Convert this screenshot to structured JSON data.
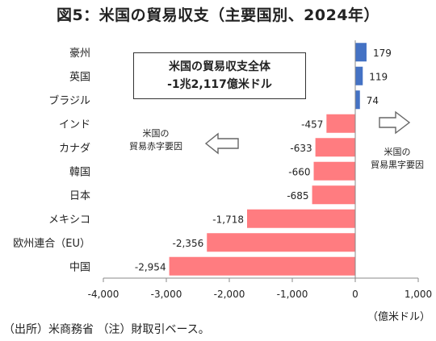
{
  "title": "図5：米国の貿易収支（主要国別、2024年）",
  "total_box": {
    "line1": "米国の貿易収支全体",
    "line2": "-1兆2,117億米ドル"
  },
  "deficit_note": {
    "line1": "米国の",
    "line2": "貿易赤字要因"
  },
  "surplus_note": {
    "line1": "米国の",
    "line2": "貿易黒字要因"
  },
  "unit": "（億米ドル）",
  "source": "（出所）米商務省 （注）財取引ベース。",
  "colors": {
    "positive": "#4472C4",
    "negative": "#FF7C80",
    "axis": "#888888",
    "arrow": "#666666"
  },
  "chart_data": {
    "type": "bar",
    "orientation": "horizontal",
    "categories": [
      "豪州",
      "英国",
      "ブラジル",
      "インド",
      "カナダ",
      "韓国",
      "日本",
      "メキシコ",
      "欧州連合（EU）",
      "中国"
    ],
    "values": [
      179,
      119,
      74,
      -457,
      -633,
      -660,
      -685,
      -1718,
      -2356,
      -2954
    ],
    "value_labels": [
      "179",
      "119",
      "74",
      "-457",
      "-633",
      "-660",
      "-685",
      "-1,718",
      "-2,356",
      "-2,954"
    ],
    "xlim": [
      -4000,
      1000
    ],
    "xticks": [
      -4000,
      -3000,
      -2000,
      -1000,
      0,
      1000
    ],
    "xtick_labels": [
      "-4,000",
      "-3,000",
      "-2,000",
      "-1,000",
      "0",
      "1,000"
    ],
    "grid": false
  }
}
